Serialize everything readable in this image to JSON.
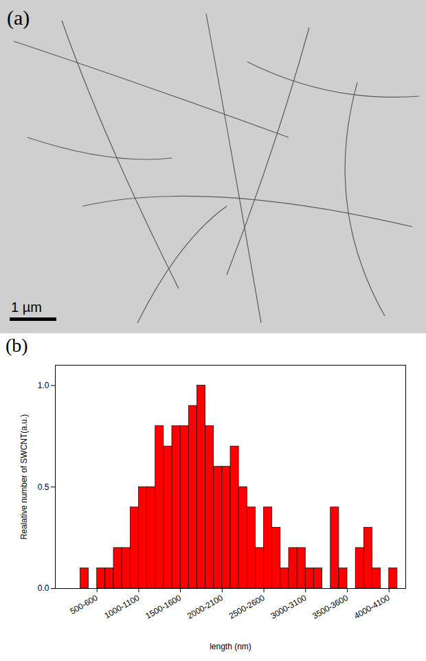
{
  "chart_data": {
    "type": "histogram",
    "panel_label": "(b)",
    "x_label": "length (nm)",
    "y_label": "Realative number of SWCNT(a.u.)",
    "bins": [
      300,
      400,
      500,
      600,
      700,
      800,
      900,
      1000,
      1100,
      1200,
      1300,
      1400,
      1500,
      1600,
      1700,
      1800,
      1900,
      2000,
      2100,
      2200,
      2300,
      2400,
      2500,
      2600,
      2700,
      2800,
      2900,
      3000,
      3100,
      3200,
      3300,
      3400,
      3500,
      3600,
      3700,
      3800,
      3900,
      4000,
      4100
    ],
    "values": [
      0.1,
      0,
      0.1,
      0.1,
      0.2,
      0.2,
      0.4,
      0.5,
      0.5,
      0.8,
      0.7,
      0.8,
      0.8,
      0.9,
      1.0,
      0.8,
      0.6,
      0.6,
      0.7,
      0.5,
      0.4,
      0.2,
      0.4,
      0.3,
      0.1,
      0.2,
      0.2,
      0.1,
      0.1,
      0,
      0.4,
      0.1,
      0,
      0.2,
      0.3,
      0.1,
      0,
      0.1
    ],
    "color": "#ff0000",
    "xlim": [
      0,
      4200
    ],
    "xticks": [
      {
        "value": 500,
        "label": "500-600"
      },
      {
        "value": 1000,
        "label": "1000-1100"
      },
      {
        "value": 1500,
        "label": "1500-1600"
      },
      {
        "value": 2000,
        "label": "2000-2100"
      },
      {
        "value": 2500,
        "label": "2500-2600"
      },
      {
        "value": 3000,
        "label": "3000-3100"
      },
      {
        "value": 3500,
        "label": "3500-3600"
      },
      {
        "value": 4000,
        "label": "4000-4100"
      }
    ],
    "ylim": [
      0,
      1.1
    ],
    "yticks": [
      {
        "value": 0,
        "label": "0.0"
      },
      {
        "value": 0.5,
        "label": "0.5"
      },
      {
        "value": 1,
        "label": "1.0"
      }
    ],
    "grid": false
  },
  "image_panel": {
    "type": "micrograph",
    "panel_label": "(a)",
    "scale_bar_label": "1 µm"
  }
}
